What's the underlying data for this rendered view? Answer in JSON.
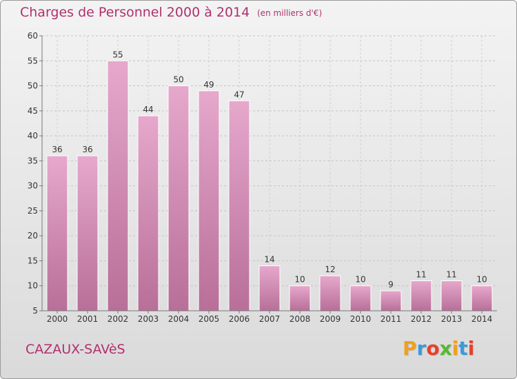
{
  "header": {
    "title": "Charges de Personnel 2000 à 2014",
    "subtitle": "(en milliers d'€)"
  },
  "footer": {
    "commune": "CAZAUX-SAVèS",
    "logo_letters": [
      "P",
      "r",
      "o",
      "x",
      "i",
      "t",
      "i"
    ]
  },
  "colors": {
    "title": "#b0306e",
    "bar_light": "#e6a8cc",
    "bar_dark": "#b86f98",
    "logo": [
      "#f0a020",
      "#3c9ad8",
      "#e8402c",
      "#5ab832",
      "#f0a020",
      "#3c9ad8",
      "#e8402c"
    ]
  },
  "chart_data": {
    "type": "bar",
    "title": "Charges de Personnel 2000 à 2014",
    "subtitle": "(en milliers d'€)",
    "categories": [
      "2000",
      "2001",
      "2002",
      "2003",
      "2004",
      "2005",
      "2006",
      "2007",
      "2008",
      "2009",
      "2010",
      "2011",
      "2012",
      "2013",
      "2014"
    ],
    "values": [
      36,
      36,
      55,
      44,
      50,
      49,
      47,
      14,
      10,
      12,
      10,
      9,
      11,
      11,
      10
    ],
    "ylim": [
      5,
      60
    ],
    "yticks": [
      5,
      10,
      15,
      20,
      25,
      30,
      35,
      40,
      45,
      50,
      55,
      60
    ],
    "grid": true,
    "legend": "none"
  }
}
